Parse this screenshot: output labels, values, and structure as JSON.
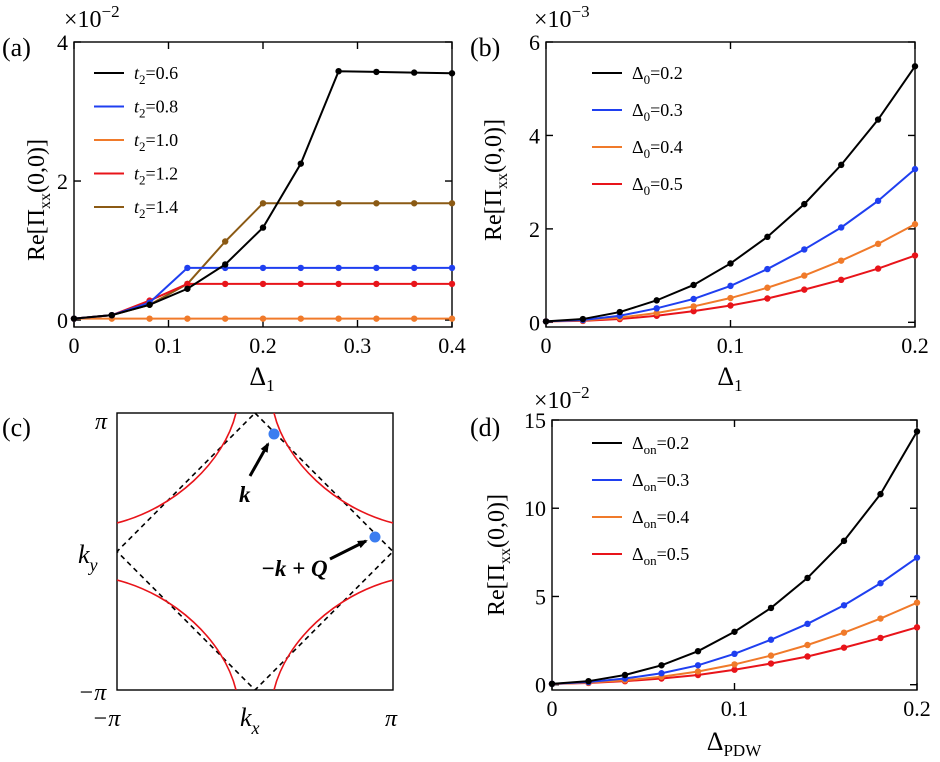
{
  "chart_data": [
    {
      "id": "a",
      "panel_label": "(a)",
      "type": "line",
      "multiplier": "×10",
      "multiplier_exp": "−2",
      "ylabel_main": "Re[Π",
      "ylabel_sub": "xx",
      "ylabel_tail": "(0,0)]",
      "xlabel": "Δ",
      "xlabel_sub": "1",
      "xlim": [
        0,
        0.4
      ],
      "ylim": [
        -0.1,
        4
      ],
      "xticks": [
        0,
        0.1,
        0.2,
        0.3,
        0.4
      ],
      "xtick_labels": [
        "0",
        "0.1",
        "0.2",
        "0.3",
        "0.4"
      ],
      "yticks": [
        0,
        2,
        4
      ],
      "ytick_labels": [
        "0",
        "2",
        "4"
      ],
      "legend_position": "top-left",
      "x": [
        0,
        0.04,
        0.08,
        0.12,
        0.16,
        0.2,
        0.24,
        0.28,
        0.32,
        0.36,
        0.4
      ],
      "series": [
        {
          "name": "t2=0.6",
          "label_var": "t",
          "label_sub": "2",
          "label_val": "=0.6",
          "color": "#000000",
          "values": [
            0.02,
            0.07,
            0.22,
            0.45,
            0.8,
            1.33,
            2.25,
            3.58,
            3.57,
            3.56,
            3.55
          ]
        },
        {
          "name": "t2=0.8",
          "label_var": "t",
          "label_sub": "2",
          "label_val": "=0.8",
          "color": "#1f3ff0",
          "values": [
            0.02,
            0.07,
            0.25,
            0.75,
            0.75,
            0.75,
            0.75,
            0.75,
            0.75,
            0.75,
            0.75
          ]
        },
        {
          "name": "t2=1.0",
          "label_var": "t",
          "label_sub": "2",
          "label_val": "=1.0",
          "color": "#f07a2a",
          "values": [
            0.02,
            0.02,
            0.02,
            0.02,
            0.02,
            0.02,
            0.02,
            0.02,
            0.02,
            0.02,
            0.02
          ]
        },
        {
          "name": "t2=1.2",
          "label_var": "t",
          "label_sub": "2",
          "label_val": "=1.2",
          "color": "#e8141a",
          "values": [
            0.02,
            0.07,
            0.28,
            0.52,
            0.52,
            0.52,
            0.52,
            0.52,
            0.52,
            0.52,
            0.52
          ]
        },
        {
          "name": "t2=1.4",
          "label_var": "t",
          "label_sub": "2",
          "label_val": "=1.4",
          "color": "#8b5a14",
          "values": [
            0.02,
            0.07,
            0.22,
            0.52,
            1.13,
            1.68,
            1.68,
            1.68,
            1.68,
            1.68,
            1.68
          ]
        }
      ]
    },
    {
      "id": "b",
      "panel_label": "(b)",
      "type": "line",
      "multiplier": "×10",
      "multiplier_exp": "−3",
      "ylabel_main": "Re[Π",
      "ylabel_sub": "xx",
      "ylabel_tail": "(0,0)]",
      "xlabel": "Δ",
      "xlabel_sub": "1",
      "xlim": [
        0,
        0.2
      ],
      "ylim": [
        -0.1,
        6
      ],
      "xticks": [
        0,
        0.1,
        0.2
      ],
      "xtick_labels": [
        "0",
        "0.1",
        "0.2"
      ],
      "yticks": [
        0,
        2,
        4,
        6
      ],
      "ytick_labels": [
        "0",
        "2",
        "4",
        "6"
      ],
      "legend_position": "top-left",
      "x": [
        0,
        0.02,
        0.04,
        0.06,
        0.08,
        0.1,
        0.12,
        0.14,
        0.16,
        0.18,
        0.2
      ],
      "series": [
        {
          "name": "Δ0=0.2",
          "label_var": "Δ",
          "label_sub": "0",
          "label_val": "=0.2",
          "color": "#000000",
          "values": [
            0.02,
            0.07,
            0.22,
            0.47,
            0.8,
            1.26,
            1.83,
            2.53,
            3.37,
            4.34,
            5.48
          ]
        },
        {
          "name": "Δ0=0.3",
          "label_var": "Δ",
          "label_sub": "0",
          "label_val": "=0.3",
          "color": "#1f3ff0",
          "values": [
            0.02,
            0.05,
            0.14,
            0.3,
            0.5,
            0.78,
            1.14,
            1.56,
            2.03,
            2.6,
            3.28
          ]
        },
        {
          "name": "Δ0=0.4",
          "label_var": "Δ",
          "label_sub": "0",
          "label_val": "=0.4",
          "color": "#f07a2a",
          "values": [
            0.02,
            0.04,
            0.1,
            0.2,
            0.34,
            0.52,
            0.74,
            1.0,
            1.32,
            1.68,
            2.1
          ]
        },
        {
          "name": "Δ0=0.5",
          "label_var": "Δ",
          "label_sub": "0",
          "label_val": "=0.5",
          "color": "#e8141a",
          "values": [
            0.02,
            0.03,
            0.07,
            0.14,
            0.24,
            0.36,
            0.51,
            0.7,
            0.91,
            1.15,
            1.43
          ]
        }
      ]
    },
    {
      "id": "c",
      "panel_label": "(c)",
      "type": "line",
      "xlabel": "k",
      "xlabel_sub": "x",
      "ylabel": "k",
      "ylabel_sub": "y",
      "xtick_labels": [
        "−π",
        "π"
      ],
      "ytick_labels": [
        "π",
        "−π"
      ],
      "annotations": [
        {
          "text": "k",
          "target": "k"
        },
        {
          "text": "−k + Q",
          "target": "-k+Q"
        }
      ],
      "points": [
        {
          "name": "k",
          "kx": 0.45,
          "ky": 3.0,
          "color": "#3b7df0"
        },
        {
          "name": "-k+Q",
          "kx": 3.0,
          "ky": 0.45,
          "color": "#3b7df0"
        }
      ],
      "curves": "red Fermi surface arcs centered at (±π, ±π); dashed black magnetic Brillouin zone diamond"
    },
    {
      "id": "d",
      "panel_label": "(d)",
      "type": "line",
      "multiplier": "×10",
      "multiplier_exp": "−2",
      "ylabel_main": "Re[Π",
      "ylabel_sub": "xx",
      "ylabel_tail": "(0,0)]",
      "xlabel": "Δ",
      "xlabel_sub": "PDW",
      "xlim": [
        0,
        0.2
      ],
      "ylim": [
        -0.3,
        15
      ],
      "xticks": [
        0,
        0.1,
        0.2
      ],
      "xtick_labels": [
        "0",
        "0.1",
        "0.2"
      ],
      "yticks": [
        0,
        5,
        10,
        15
      ],
      "ytick_labels": [
        "0",
        "5",
        "10",
        "15"
      ],
      "legend_position": "top-left",
      "x": [
        0,
        0.02,
        0.04,
        0.06,
        0.08,
        0.1,
        0.12,
        0.14,
        0.16,
        0.18,
        0.2
      ],
      "series": [
        {
          "name": "Δon=0.2",
          "label_var": "Δ",
          "label_sub": "on",
          "label_val": "=0.2",
          "color": "#000000",
          "values": [
            0.05,
            0.2,
            0.55,
            1.1,
            1.9,
            3.0,
            4.35,
            6.05,
            8.15,
            10.8,
            14.35
          ]
        },
        {
          "name": "Δon=0.3",
          "label_var": "Δ",
          "label_sub": "on",
          "label_val": "=0.3",
          "color": "#1f3ff0",
          "values": [
            0.05,
            0.15,
            0.35,
            0.65,
            1.1,
            1.75,
            2.55,
            3.45,
            4.5,
            5.75,
            7.2
          ]
        },
        {
          "name": "Δon=0.4",
          "label_var": "Δ",
          "label_sub": "on",
          "label_val": "=0.4",
          "color": "#f07a2a",
          "values": [
            0.05,
            0.12,
            0.25,
            0.45,
            0.75,
            1.15,
            1.65,
            2.25,
            2.95,
            3.75,
            4.65
          ]
        },
        {
          "name": "Δon=0.5",
          "label_var": "Δ",
          "label_sub": "on",
          "label_val": "=0.5",
          "color": "#e8141a",
          "values": [
            0.05,
            0.1,
            0.2,
            0.35,
            0.55,
            0.85,
            1.2,
            1.6,
            2.1,
            2.65,
            3.25
          ]
        }
      ]
    }
  ]
}
